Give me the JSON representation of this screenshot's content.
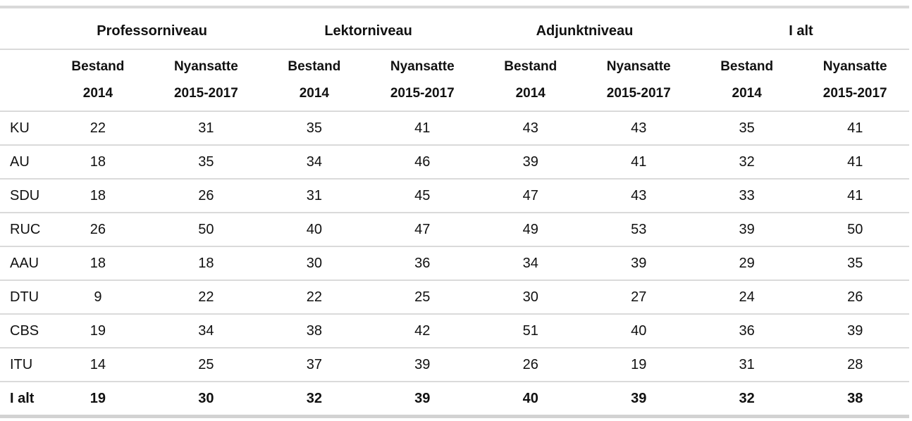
{
  "table": {
    "groups": [
      {
        "label": "Professorniveau"
      },
      {
        "label": "Lektorniveau"
      },
      {
        "label": "Adjunktniveau"
      },
      {
        "label": "I alt"
      }
    ],
    "column_headers": [
      {
        "line1": "Bestand",
        "line2": "2014"
      },
      {
        "line1": "Nyansatte",
        "line2": "2015-2017"
      }
    ],
    "rows": [
      {
        "label": "KU",
        "bold": false,
        "values": [
          22,
          31,
          35,
          41,
          43,
          43,
          35,
          41
        ]
      },
      {
        "label": "AU",
        "bold": false,
        "values": [
          18,
          35,
          34,
          46,
          39,
          41,
          32,
          41
        ]
      },
      {
        "label": "SDU",
        "bold": false,
        "values": [
          18,
          26,
          31,
          45,
          47,
          43,
          33,
          41
        ]
      },
      {
        "label": "RUC",
        "bold": false,
        "values": [
          26,
          50,
          40,
          47,
          49,
          53,
          39,
          50
        ]
      },
      {
        "label": "AAU",
        "bold": false,
        "values": [
          18,
          18,
          30,
          36,
          34,
          39,
          29,
          35
        ]
      },
      {
        "label": "DTU",
        "bold": false,
        "values": [
          9,
          22,
          22,
          25,
          30,
          27,
          24,
          26
        ]
      },
      {
        "label": "CBS",
        "bold": false,
        "values": [
          19,
          34,
          38,
          42,
          51,
          40,
          36,
          39
        ]
      },
      {
        "label": "ITU",
        "bold": false,
        "values": [
          14,
          25,
          37,
          39,
          26,
          19,
          31,
          28
        ]
      },
      {
        "label": "I alt",
        "bold": true,
        "values": [
          19,
          30,
          32,
          39,
          40,
          39,
          32,
          38
        ]
      }
    ],
    "colors": {
      "grid_line": "#dadada",
      "outer_border": "#d2d2d2",
      "text": "#111111",
      "background": "#ffffff"
    }
  }
}
